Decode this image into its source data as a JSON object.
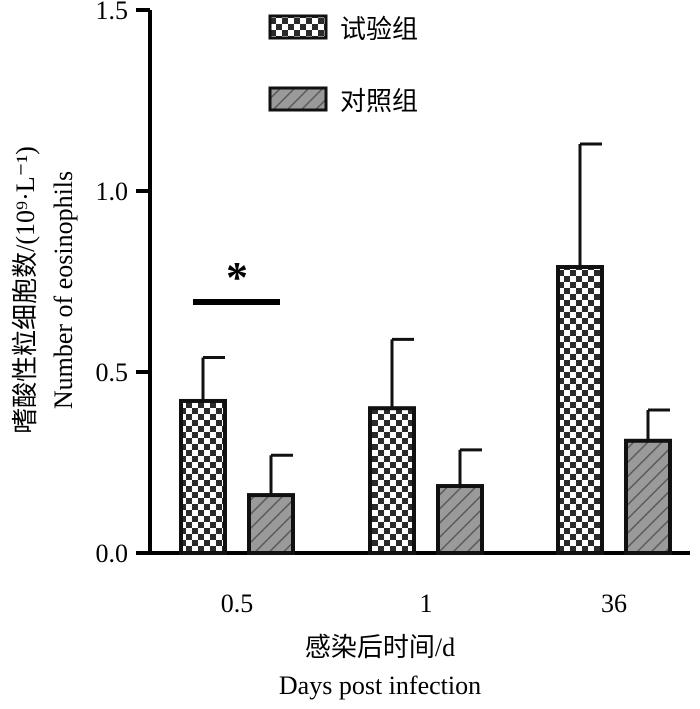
{
  "chart_data": {
    "type": "bar",
    "categories": [
      "0.5",
      "1",
      "36"
    ],
    "series": [
      {
        "name": "试验组",
        "values": [
          0.42,
          0.4,
          0.79
        ],
        "error": [
          0.12,
          0.19,
          0.34
        ],
        "pattern": "checker"
      },
      {
        "name": "对照组",
        "values": [
          0.16,
          0.185,
          0.31
        ],
        "error": [
          0.11,
          0.1,
          0.085
        ],
        "pattern": "hatch"
      }
    ],
    "ylim": [
      0,
      1.5
    ],
    "yticks": [
      "0.0",
      "0.5",
      "1.0",
      "1.5"
    ],
    "ylabel_cn": "嗜酸性粒细胞数/(10⁹·L⁻¹)",
    "ylabel_en": "Number of eosinophils",
    "xlabel_cn": "感染后时间/d",
    "xlabel_en": "Days post infection",
    "annotation": "*",
    "legend_position": "top",
    "grid": false,
    "colors": {
      "bar_fill_control": "#9a9a9a",
      "bar_edge": "#111111",
      "checker_dark": "#2a2a2a"
    }
  }
}
